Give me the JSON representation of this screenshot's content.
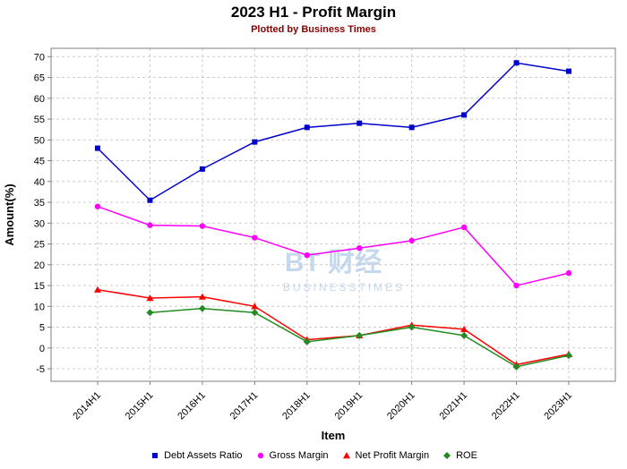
{
  "title": "2023 H1 - Profit Margin",
  "subtitle": "Plotted by Business Times",
  "watermark": {
    "text": "BT 财经",
    "caption": "BUSINESSTIMES",
    "color": "#b9cfe9"
  },
  "chart_data": {
    "type": "line",
    "title": "2023 H1 - Profit Margin",
    "subtitle": "Plotted by Business Times",
    "xlabel": "Item",
    "ylabel": "Amount(%)",
    "categories": [
      "2014H1",
      "2015H1",
      "2016H1",
      "2017H1",
      "2018H1",
      "2019H1",
      "2020H1",
      "2021H1",
      "2022H1",
      "2023H1"
    ],
    "series": [
      {
        "name": "Debt Assets Ratio",
        "color": "#0000cd",
        "marker": "square",
        "values": [
          48,
          35.5,
          43,
          49.5,
          53,
          54,
          53,
          56,
          68.5,
          66.5
        ]
      },
      {
        "name": "Gross Margin",
        "color": "#ff00ff",
        "marker": "circle",
        "values": [
          34,
          29.5,
          29.3,
          26.5,
          22.3,
          24,
          25.8,
          29,
          15,
          18
        ]
      },
      {
        "name": "Net Profit Margin",
        "color": "#ff0000",
        "marker": "triangle",
        "values": [
          14,
          12,
          12.3,
          10,
          2,
          3,
          5.5,
          4.5,
          -4,
          -1.5
        ]
      },
      {
        "name": "ROE",
        "color": "#228b22",
        "marker": "diamond",
        "values": [
          null,
          8.5,
          9.5,
          8.5,
          1.5,
          3,
          5,
          3,
          -4.5,
          -1.8
        ]
      }
    ],
    "ylim": [
      -8,
      72
    ],
    "yticks": [
      -5,
      0,
      5,
      10,
      15,
      20,
      25,
      30,
      35,
      40,
      45,
      50,
      55,
      60,
      65,
      70
    ],
    "grid": true,
    "grid_style": "dashed",
    "legend_position": "bottom"
  }
}
